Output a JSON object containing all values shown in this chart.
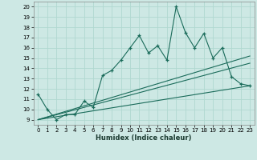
{
  "title": "",
  "xlabel": "Humidex (Indice chaleur)",
  "background_color": "#cde8e4",
  "grid_color": "#b0d8d0",
  "line_color": "#1a6b5a",
  "xlim": [
    -0.5,
    23.5
  ],
  "ylim": [
    8.5,
    20.5
  ],
  "xticks": [
    0,
    1,
    2,
    3,
    4,
    5,
    6,
    7,
    8,
    9,
    10,
    11,
    12,
    13,
    14,
    15,
    16,
    17,
    18,
    19,
    20,
    21,
    22,
    23
  ],
  "yticks": [
    9,
    10,
    11,
    12,
    13,
    14,
    15,
    16,
    17,
    18,
    19,
    20
  ],
  "main_x": [
    0,
    1,
    2,
    3,
    4,
    5,
    6,
    7,
    8,
    9,
    10,
    11,
    12,
    13,
    14,
    15,
    16,
    17,
    18,
    19,
    20,
    21,
    22,
    23
  ],
  "main_y": [
    11.5,
    10.0,
    9.0,
    9.5,
    9.5,
    10.8,
    10.2,
    13.3,
    13.8,
    14.8,
    16.0,
    17.2,
    15.5,
    16.2,
    14.8,
    20.0,
    17.5,
    16.0,
    17.4,
    15.0,
    16.0,
    13.2,
    12.5,
    12.3
  ],
  "line1_x": [
    0,
    23
  ],
  "line1_y": [
    9.0,
    15.2
  ],
  "line2_x": [
    0,
    23
  ],
  "line2_y": [
    9.0,
    12.3
  ],
  "line3_x": [
    0,
    23
  ],
  "line3_y": [
    9.0,
    14.5
  ]
}
